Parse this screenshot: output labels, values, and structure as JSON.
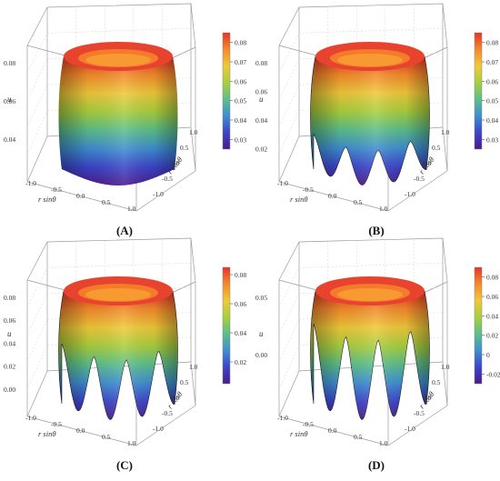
{
  "panels": [
    {
      "caption": "(A)",
      "zlabel": "u",
      "ylabel": "r cosθ",
      "xlabel": "r sinθ",
      "zticks": [
        "0.08",
        "0.06",
        "0.04"
      ],
      "xticks": [
        "-1.0",
        "-0.5",
        "0.0",
        "0.5",
        "1.0"
      ],
      "yticks": [
        "1.0",
        "0.5",
        "0.0",
        "-0.5",
        "-1.0"
      ],
      "colorbar_ticks": [
        "0.08",
        "0.07",
        "0.06",
        "0.05",
        "0.04",
        "0.03"
      ],
      "colorbar_range": [
        0.025,
        0.085
      ],
      "lobes": 0,
      "bottom_depth": 0
    },
    {
      "caption": "(B)",
      "zlabel": "u",
      "ylabel": "r cosθ",
      "xlabel": "r sinθ",
      "zticks": [
        "0.08",
        "0.06",
        "0.04",
        "0.02"
      ],
      "xticks": [
        "-1.0",
        "-0.5",
        "0.0",
        "0.5",
        "1.0"
      ],
      "yticks": [
        "1.0",
        "0.5",
        "0.0",
        "-0.5",
        "-1.0"
      ],
      "colorbar_ticks": [
        "0.08",
        "0.07",
        "0.06",
        "0.05",
        "0.04",
        "0.03"
      ],
      "colorbar_range": [
        0.025,
        0.085
      ],
      "lobes": 7,
      "bottom_depth": 0.35
    },
    {
      "caption": "(C)",
      "zlabel": "u",
      "ylabel": "r cosθ",
      "xlabel": "r sinθ",
      "zticks": [
        "0.08",
        "0.06",
        "0.04",
        "0.02",
        "0.00"
      ],
      "xticks": [
        "-1.0",
        "-0.5",
        "0.0",
        "0.5",
        "1.0"
      ],
      "yticks": [
        "1.0",
        "0.5",
        "0.0",
        "-0.5",
        "-1.0"
      ],
      "colorbar_ticks": [
        "0.08",
        "0.06",
        "0.04",
        "0.02"
      ],
      "colorbar_range": [
        0.005,
        0.085
      ],
      "lobes": 7,
      "bottom_depth": 0.6
    },
    {
      "caption": "(D)",
      "zlabel": "u",
      "ylabel": "r cosθ",
      "xlabel": "r sinθ",
      "zticks": [
        "0.05",
        "0.00"
      ],
      "xticks": [
        "-1.0",
        "-0.5",
        "0.0",
        "0.5",
        "1.0"
      ],
      "yticks": [
        "1.0",
        "0.5",
        "0.0",
        "-0.5",
        "-1.0"
      ],
      "colorbar_ticks": [
        "0.08",
        "0.06",
        "0.04",
        "0.02",
        "0",
        "-0.02"
      ],
      "colorbar_range": [
        -0.03,
        0.09
      ],
      "lobes": 7,
      "bottom_depth": 0.8
    }
  ],
  "colormap": [
    "#4b1a8c",
    "#3b45c8",
    "#3f8ed0",
    "#5cbf8a",
    "#a9cf3e",
    "#efc93a",
    "#f48a2b",
    "#e4332a"
  ]
}
